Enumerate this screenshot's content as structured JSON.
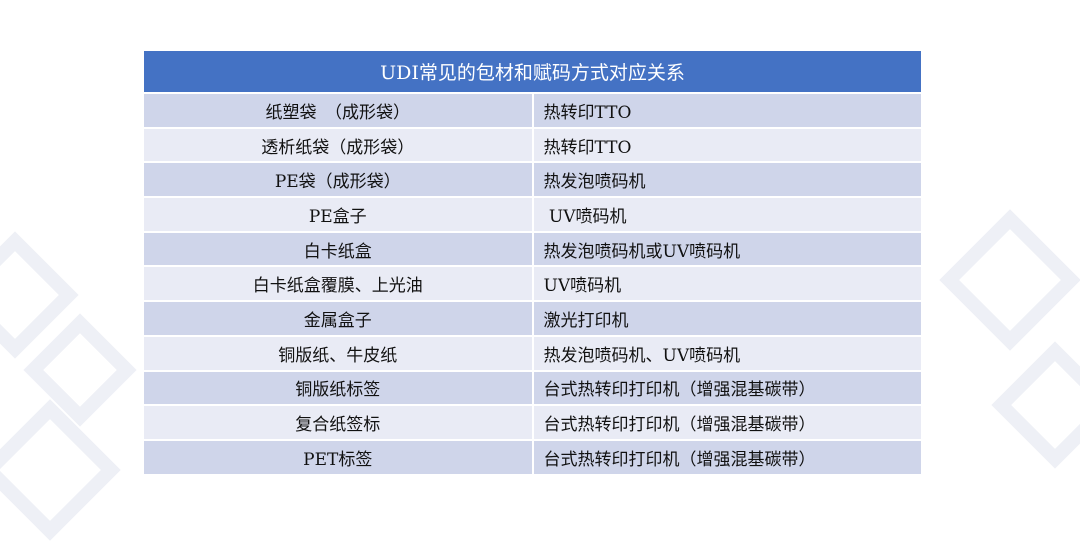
{
  "table": {
    "title": "UDI常见的包材和赋码方式对应关系",
    "header_color": "#4472c4",
    "row_colors": [
      "#cfd5ea",
      "#e9ebf5"
    ],
    "rows": [
      {
        "material": "纸塑袋　（成形袋）",
        "method": "热转印TTO"
      },
      {
        "material": "透析纸袋（成形袋）",
        "method": "热转印TTO"
      },
      {
        "material": "PE袋（成形袋）",
        "method": "热发泡喷码机"
      },
      {
        "material": "PE盒子",
        "method": " UV喷码机"
      },
      {
        "material": "白卡纸盒",
        "method": "热发泡喷码机或UV喷码机"
      },
      {
        "material": "白卡纸盒覆膜、上光油",
        "method": "UV喷码机"
      },
      {
        "material": "金属盒子",
        "method": "激光打印机"
      },
      {
        "material": "铜版纸、牛皮纸",
        "method": "热发泡喷码机、UV喷码机"
      },
      {
        "material": "铜版纸标签",
        "method": "台式热转印打印机（增强混基碳带）"
      },
      {
        "material": "复合纸签标",
        "method": "台式热转印打印机（增强混基碳带）"
      },
      {
        "material": "PET标签",
        "method": "台式热转印打印机（增强混基碳带）"
      }
    ]
  }
}
